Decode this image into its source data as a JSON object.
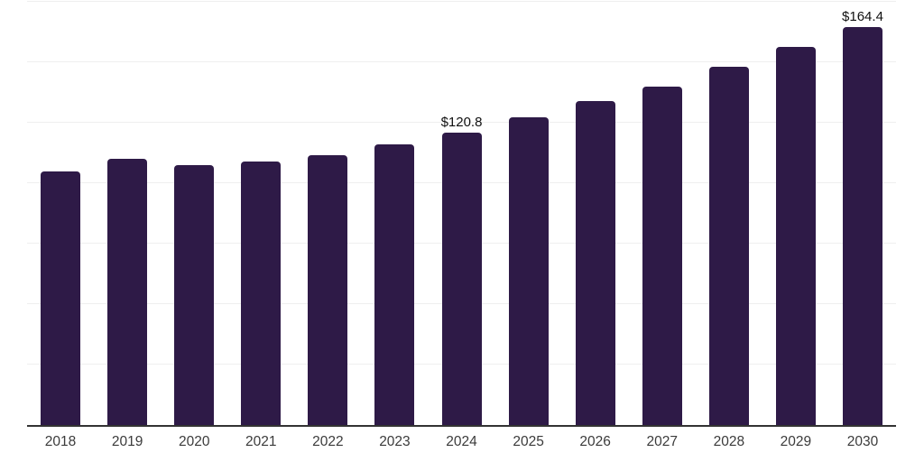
{
  "chart_data": {
    "type": "bar",
    "title": "",
    "xlabel": "",
    "ylabel": "",
    "categories": [
      "2018",
      "2019",
      "2020",
      "2021",
      "2022",
      "2023",
      "2024",
      "2025",
      "2026",
      "2027",
      "2028",
      "2029",
      "2030"
    ],
    "values": [
      105.0,
      109.9,
      107.3,
      108.8,
      111.6,
      116.0,
      120.8,
      127.1,
      133.8,
      140.1,
      148.0,
      156.5,
      164.4
    ],
    "data_labels": {
      "2024": "$120.8",
      "2030": "$164.4"
    },
    "ylim": [
      0,
      175
    ],
    "gridline_step": 25,
    "grid": true,
    "legend_position": "none",
    "colors": {
      "bar": "#2e1a47",
      "background": "#ffffff",
      "gridline": "#efefef",
      "axis_line": "#333333",
      "data_label_text": "#101010",
      "tick_label_text": "#3b3b3b"
    }
  }
}
